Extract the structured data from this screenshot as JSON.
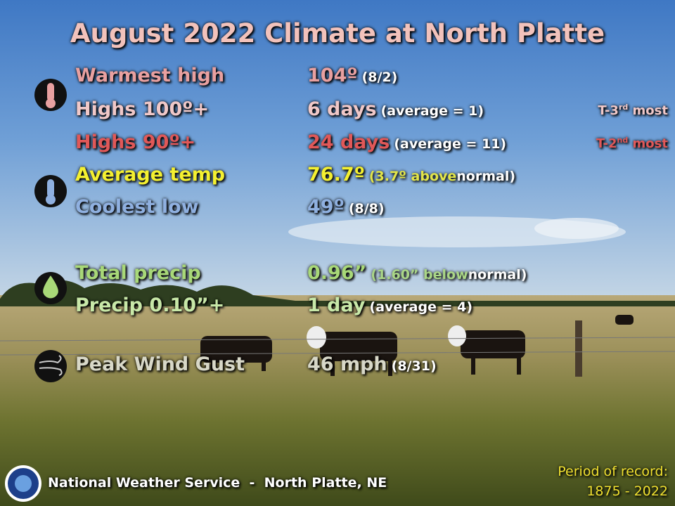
{
  "title": "August 2022 Climate at North Platte",
  "rows": [
    {
      "label": "Warmest high",
      "value": "104º",
      "detail": "(8/2)"
    },
    {
      "label": "Highs 100º+",
      "value": "6 days",
      "detail": "(average = 1)",
      "rank": {
        "prefix": "T-3",
        "sup": "rd",
        "suffix": "most"
      }
    },
    {
      "label": "Highs 90º+",
      "value": "24 days",
      "detail": "(average = 11)",
      "rank": {
        "prefix": "T-2",
        "sup": "nd",
        "suffix": "most"
      }
    },
    {
      "label": "Average temp",
      "value": "76.7º",
      "detail": "(3.7º above",
      "detail_end": "normal)"
    },
    {
      "label": "Coolest low",
      "value": "49º",
      "detail": "(8/8)"
    },
    {
      "label": "Total precip",
      "value": "0.96”",
      "detail": "(1.60” below",
      "detail_end": "normal)"
    },
    {
      "label": "Precip 0.10”+",
      "value": "1 day",
      "detail": "(average = 4)"
    },
    {
      "label": "Peak Wind Gust",
      "value": "46 mph",
      "detail": "(8/31)"
    }
  ],
  "footer": {
    "office": "National Weather Service  -  North Platte, NE",
    "period_label": "Period of record:",
    "period_range": "1875 - 2022"
  }
}
